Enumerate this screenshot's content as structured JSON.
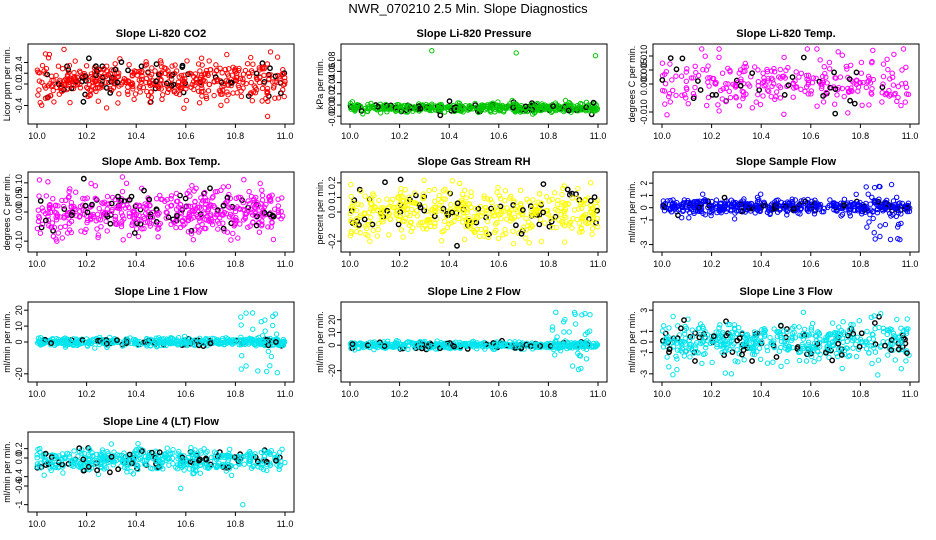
{
  "title": "NWR_070210  2.5 Min. Slope Diagnostics",
  "colors": {
    "highlight": "#000000",
    "axis": "#000000",
    "background": "#ffffff"
  },
  "chart_data": [
    {
      "type": "scatter",
      "title": "Slope Li-820 CO2",
      "xlabel": "",
      "ylabel": "Licor ppm per min.",
      "color": "#ff0000",
      "xlim": [
        10.0,
        11.0
      ],
      "ylim": [
        -0.65,
        0.65
      ],
      "xticks": [
        "10.0",
        "10.2",
        "10.4",
        "10.6",
        "10.8",
        "11.0"
      ],
      "yticks": [
        "-0.4",
        "0.0",
        "0.2",
        "0.4"
      ],
      "n": 520,
      "center": 0.05,
      "spread": 0.18,
      "outliers": [
        [
          10.05,
          0.55
        ],
        [
          10.93,
          -0.6
        ],
        [
          10.97,
          0.5
        ]
      ],
      "spike": null
    },
    {
      "type": "scatter",
      "title": "Slope Li-820 Pressure",
      "xlabel": "",
      "ylabel": "kPa per min.",
      "color": "#00c800",
      "xlim": [
        10.0,
        11.0
      ],
      "ylim": [
        -0.025,
        0.1
      ],
      "xticks": [
        "10.0",
        "10.2",
        "10.4",
        "10.6",
        "10.8",
        "11.0"
      ],
      "yticks": [
        "-0.02",
        "0.00",
        "0.02",
        "0.04",
        "0.06",
        "0.08"
      ],
      "n": 520,
      "center": -0.005,
      "spread": 0.004,
      "outliers": [
        [
          10.33,
          0.097
        ],
        [
          10.67,
          0.093
        ],
        [
          10.99,
          0.088
        ]
      ],
      "spike": null
    },
    {
      "type": "scatter",
      "title": "Slope Li-820 Temp.",
      "xlabel": "",
      "ylabel": "degrees C per min.",
      "color": "#ff00ff",
      "xlim": [
        10.0,
        11.0
      ],
      "ylim": [
        -0.0125,
        0.0125
      ],
      "xticks": [
        "10.0",
        "10.2",
        "10.4",
        "10.6",
        "10.8",
        "11.0"
      ],
      "yticks": [
        "-0.010",
        "0.000",
        "0.005",
        "0.010"
      ],
      "n": 300,
      "center": 0.0,
      "spread": 0.0045,
      "outliers": [
        [
          10.85,
          0.012
        ],
        [
          10.02,
          -0.011
        ]
      ],
      "spike": null
    },
    {
      "type": "scatter",
      "title": "Slope Amb. Box Temp.",
      "xlabel": "",
      "ylabel": "degrees C per min.",
      "color": "#ff00ff",
      "xlim": [
        10.0,
        11.0
      ],
      "ylim": [
        -0.12,
        0.12
      ],
      "xticks": [
        "10.0",
        "10.2",
        "10.4",
        "10.6",
        "10.8",
        "11.0"
      ],
      "yticks": [
        "-0.10",
        "0.00",
        "0.05",
        "0.10"
      ],
      "n": 520,
      "center": 0.0,
      "spread": 0.04,
      "outliers": [
        [
          10.01,
          0.11
        ],
        [
          10.08,
          -0.1
        ]
      ],
      "spike": null
    },
    {
      "type": "scatter",
      "title": "Slope Gas Stream RH",
      "xlabel": "",
      "ylabel": "percent per min.",
      "color": "#ffff00",
      "xlim": [
        10.0,
        11.0
      ],
      "ylim": [
        -0.24,
        0.24
      ],
      "xticks": [
        "10.0",
        "10.2",
        "10.4",
        "10.6",
        "10.8",
        "11.0"
      ],
      "yticks": [
        "-0.2",
        "0.0",
        "0.1",
        "0.2"
      ],
      "n": 520,
      "center": 0.0,
      "spread": 0.08,
      "outliers": [
        [
          10.08,
          -0.2
        ],
        [
          10.97,
          0.2
        ]
      ],
      "spike": null
    },
    {
      "type": "scatter",
      "title": "Slope Sample Flow",
      "xlabel": "",
      "ylabel": "ml/min per min.",
      "color": "#0000ff",
      "xlim": [
        10.0,
        11.0
      ],
      "ylim": [
        -3.2,
        2.5
      ],
      "xticks": [
        "10.0",
        "10.2",
        "10.4",
        "10.6",
        "10.8",
        "11.0"
      ],
      "yticks": [
        "-3",
        "-1",
        "0",
        "1",
        "2"
      ],
      "n": 520,
      "center": 0.1,
      "spread": 0.28,
      "outliers": [],
      "spike": {
        "x0": 10.82,
        "x1": 10.97,
        "lo": -2.8,
        "hi": 2.2,
        "count": 30
      }
    },
    {
      "type": "scatter",
      "title": "Slope Line 1 Flow",
      "xlabel": "",
      "ylabel": "ml/min per min.",
      "color": "#00e5ee",
      "xlim": [
        10.0,
        11.0
      ],
      "ylim": [
        -22,
        22
      ],
      "xticks": [
        "10.0",
        "10.2",
        "10.4",
        "10.6",
        "10.8",
        "11.0"
      ],
      "yticks": [
        "-20",
        "0",
        "10",
        "20"
      ],
      "n": 520,
      "center": 0.0,
      "spread": 1.2,
      "outliers": [],
      "spike": {
        "x0": 10.82,
        "x1": 10.97,
        "lo": -20,
        "hi": 19,
        "count": 30
      }
    },
    {
      "type": "scatter",
      "title": "Slope Line 2 Flow",
      "xlabel": "",
      "ylabel": "ml/min per min.",
      "color": "#00e5ee",
      "xlim": [
        10.0,
        11.0
      ],
      "ylim": [
        -25,
        30
      ],
      "xticks": [
        "10.0",
        "10.2",
        "10.4",
        "10.6",
        "10.8",
        "11.0"
      ],
      "yticks": [
        "-20",
        "0",
        "10",
        "20"
      ],
      "n": 520,
      "center": 0.0,
      "spread": 1.4,
      "outliers": [],
      "spike": {
        "x0": 10.8,
        "x1": 10.97,
        "lo": -22,
        "hi": 28,
        "count": 34
      }
    },
    {
      "type": "scatter",
      "title": "Slope Line 3 Flow",
      "xlabel": "",
      "ylabel": "ml/min per min.",
      "color": "#00e5ee",
      "xlim": [
        10.0,
        11.0
      ],
      "ylim": [
        -3.3,
        3.3
      ],
      "xticks": [
        "10.0",
        "10.2",
        "10.4",
        "10.6",
        "10.8",
        "11.0"
      ],
      "yticks": [
        "-3",
        "-1",
        "0",
        "1",
        "3"
      ],
      "n": 520,
      "center": 0.0,
      "spread": 0.9,
      "outliers": [
        [
          10.06,
          -2.6
        ],
        [
          10.28,
          -3.0
        ],
        [
          10.87,
          -3.1
        ],
        [
          10.57,
          2.8
        ]
      ],
      "spike": null
    },
    {
      "type": "scatter",
      "title": "Slope Line 4 (LT) Flow",
      "xlabel": "",
      "ylabel": "ml/min per min.",
      "color": "#00e5ee",
      "xlim": [
        10.0,
        11.0
      ],
      "ylim": [
        -1.05,
        0.45
      ],
      "xticks": [
        "10.0",
        "10.2",
        "10.4",
        "10.6",
        "10.8",
        "11.0"
      ],
      "yticks": [
        "-1",
        "-0.6",
        "-0.4",
        "0.0",
        "0.2"
      ],
      "n": 520,
      "center": -0.05,
      "spread": 0.12,
      "outliers": [
        [
          10.58,
          -0.65
        ],
        [
          10.83,
          -1.0
        ],
        [
          10.3,
          0.3
        ]
      ],
      "spike": null
    }
  ]
}
